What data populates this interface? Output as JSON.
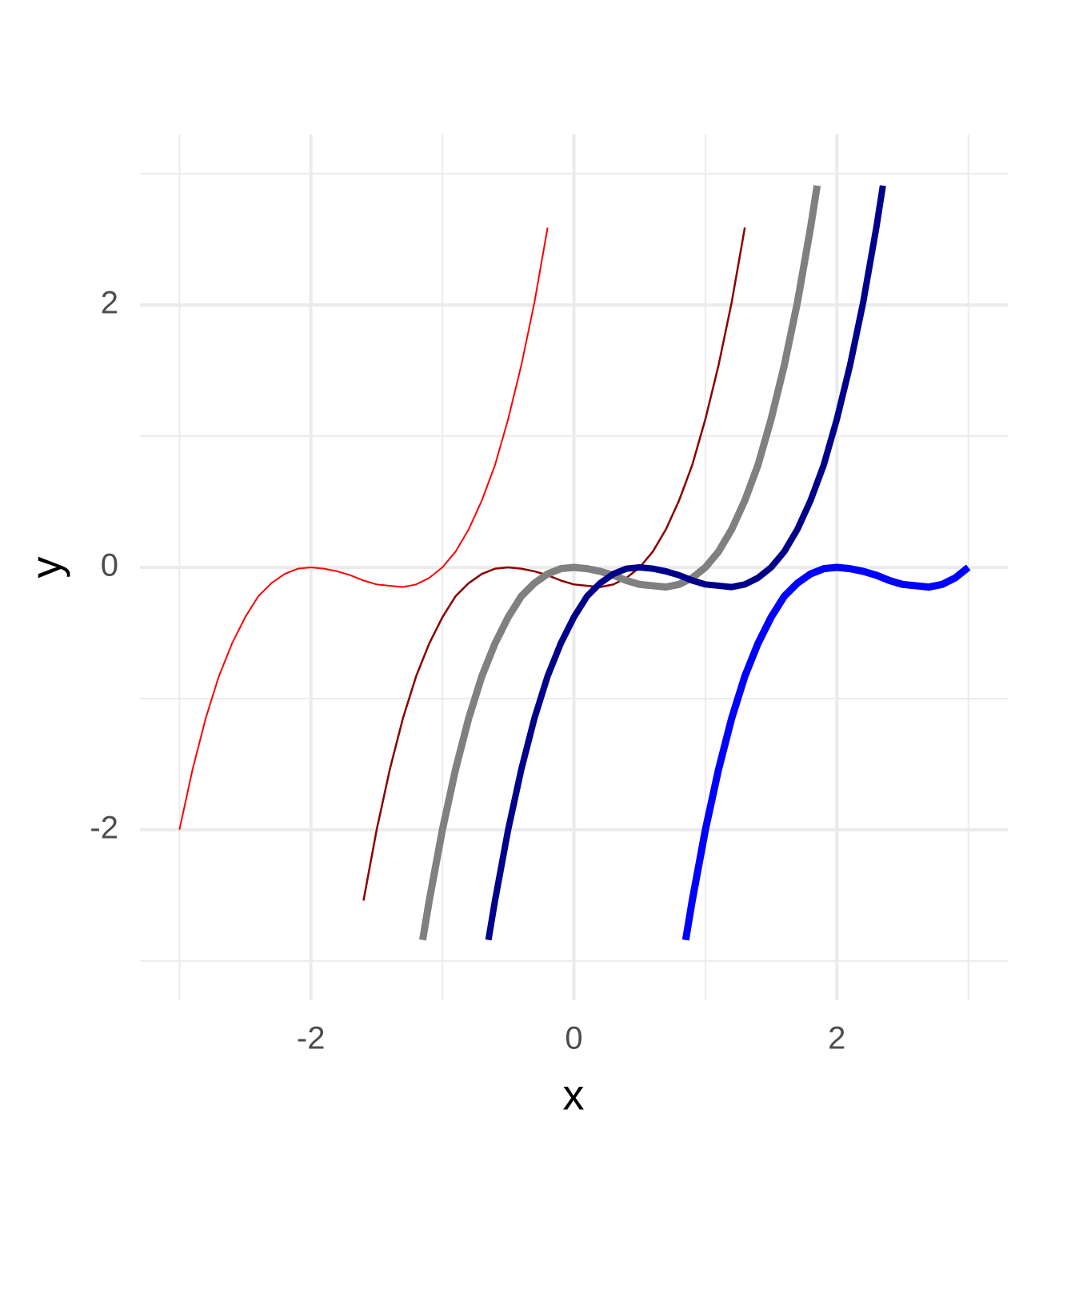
{
  "chart_data": {
    "type": "line",
    "x_label": "x",
    "y_label": "y",
    "xlim": [
      -3.3,
      3.3
    ],
    "ylim": [
      -3.3,
      3.3
    ],
    "xticks": [
      -2,
      0,
      2
    ],
    "yticks": [
      -2,
      0,
      2
    ],
    "x_minor_grid": [
      -3,
      -1,
      1,
      3
    ],
    "y_minor_grid": [
      -3,
      -1,
      1,
      3
    ],
    "grid": true,
    "series": [
      {
        "color": "#ff0000",
        "linewidth": 2,
        "x": [
          -3,
          -2.9,
          -2.8,
          -2.7,
          -2.6,
          -2.5,
          -2.4,
          -2.3,
          -2.2,
          -2.1,
          -2,
          -1.9,
          -1.8,
          -1.7,
          -1.6,
          -1.5,
          -1.4,
          -1.3,
          -1.2,
          -1.1,
          -1,
          -0.9,
          -0.8,
          -0.7,
          -0.6,
          -0.5,
          -0.4,
          -0.3,
          -0.2
        ],
        "values": [
          -2,
          -1.54,
          -1.15,
          -0.83,
          -0.58,
          -0.38,
          -0.22,
          -0.12,
          -0.05,
          -0.01,
          0,
          -0.01,
          -0.03,
          -0.06,
          -0.1,
          -0.13,
          -0.14,
          -0.15,
          -0.13,
          -0.08,
          0,
          0.12,
          0.29,
          0.51,
          0.78,
          1.13,
          1.54,
          2.02,
          2.59
        ]
      },
      {
        "color": "#8b0000",
        "linewidth": 2.5,
        "x": [
          -1.6,
          -1.5,
          -1.4,
          -1.3,
          -1.2,
          -1.1,
          -1,
          -0.9,
          -0.8,
          -0.7,
          -0.6,
          -0.5,
          -0.4,
          -0.3,
          -0.2,
          -0.1,
          0,
          0.1,
          0.2,
          0.3,
          0.4,
          0.5,
          0.6,
          0.7,
          0.8,
          0.9,
          1,
          1.1,
          1.2,
          1.3
        ],
        "values": [
          -2.54,
          -2,
          -1.54,
          -1.15,
          -0.83,
          -0.58,
          -0.38,
          -0.22,
          -0.12,
          -0.05,
          -0.01,
          0,
          -0.01,
          -0.03,
          -0.06,
          -0.1,
          -0.13,
          -0.14,
          -0.15,
          -0.13,
          -0.08,
          0,
          0.12,
          0.29,
          0.51,
          0.78,
          1.13,
          1.54,
          2.02,
          2.59
        ]
      },
      {
        "color": "#808080",
        "linewidth": 9,
        "x": [
          -1.15,
          -1.1,
          -1,
          -0.9,
          -0.8,
          -0.7,
          -0.6,
          -0.5,
          -0.4,
          -0.3,
          -0.2,
          -0.1,
          0,
          0.1,
          0.2,
          0.3,
          0.4,
          0.5,
          0.6,
          0.7,
          0.8,
          0.9,
          1,
          1.1,
          1.2,
          1.3,
          1.4,
          1.5,
          1.6,
          1.7,
          1.8,
          1.85
        ],
        "values": [
          -2.84,
          -2.54,
          -2,
          -1.54,
          -1.15,
          -0.83,
          -0.58,
          -0.38,
          -0.22,
          -0.12,
          -0.05,
          -0.01,
          0,
          -0.01,
          -0.03,
          -0.06,
          -0.1,
          -0.13,
          -0.14,
          -0.15,
          -0.13,
          -0.08,
          0,
          0.12,
          0.29,
          0.51,
          0.78,
          1.13,
          1.54,
          2.02,
          2.59,
          2.91
        ]
      },
      {
        "color": "#00008b",
        "linewidth": 8,
        "x": [
          -0.65,
          -0.6,
          -0.5,
          -0.4,
          -0.3,
          -0.2,
          -0.1,
          0,
          0.1,
          0.2,
          0.3,
          0.4,
          0.5,
          0.6,
          0.7,
          0.8,
          0.9,
          1,
          1.1,
          1.2,
          1.3,
          1.4,
          1.5,
          1.6,
          1.7,
          1.8,
          1.9,
          2,
          2.1,
          2.2,
          2.3,
          2.35
        ],
        "values": [
          -2.84,
          -2.54,
          -2,
          -1.54,
          -1.15,
          -0.83,
          -0.58,
          -0.38,
          -0.22,
          -0.12,
          -0.05,
          -0.01,
          0,
          -0.01,
          -0.03,
          -0.06,
          -0.1,
          -0.13,
          -0.14,
          -0.15,
          -0.13,
          -0.08,
          0,
          0.12,
          0.29,
          0.51,
          0.78,
          1.13,
          1.54,
          2.02,
          2.59,
          2.91
        ]
      },
      {
        "color": "#0000ff",
        "linewidth": 9,
        "x": [
          0.85,
          0.9,
          1,
          1.1,
          1.2,
          1.3,
          1.4,
          1.5,
          1.6,
          1.7,
          1.8,
          1.9,
          2,
          2.1,
          2.2,
          2.3,
          2.4,
          2.5,
          2.6,
          2.7,
          2.8,
          2.9,
          3
        ],
        "values": [
          -2.84,
          -2.54,
          -2,
          -1.54,
          -1.15,
          -0.83,
          -0.58,
          -0.38,
          -0.22,
          -0.12,
          -0.05,
          -0.01,
          0,
          -0.01,
          -0.03,
          -0.06,
          -0.1,
          -0.13,
          -0.14,
          -0.15,
          -0.13,
          -0.08,
          0
        ]
      }
    ]
  }
}
